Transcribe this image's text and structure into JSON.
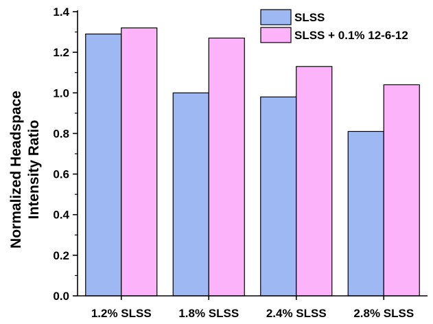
{
  "chart_data": {
    "type": "bar",
    "categories": [
      "1.2% SLSS",
      "1.8% SLSS",
      "2.4% SLSS",
      "2.8% SLSS"
    ],
    "series": [
      {
        "name": "SLSS",
        "values": [
          1.29,
          1.0,
          0.98,
          0.81
        ],
        "color": "#9DB8F2"
      },
      {
        "name": "SLSS + 0.1% 12-6-12",
        "values": [
          1.32,
          1.27,
          1.13,
          1.04
        ],
        "color": "#FDB3FA"
      }
    ],
    "ylabel_lines": [
      "Normalized Headspace",
      "Intensity Ratio"
    ],
    "xlabel": "",
    "ylim": [
      0,
      1.4
    ],
    "yticks": [
      0.0,
      0.2,
      0.4,
      0.6,
      0.8,
      1.0,
      1.2,
      1.4
    ],
    "ytick_labels": [
      "0.0",
      "0.2",
      "0.4",
      "0.6",
      "0.8",
      "1.0",
      "1.2",
      "1.4"
    ],
    "legend_position": "top-right",
    "grid": false
  }
}
